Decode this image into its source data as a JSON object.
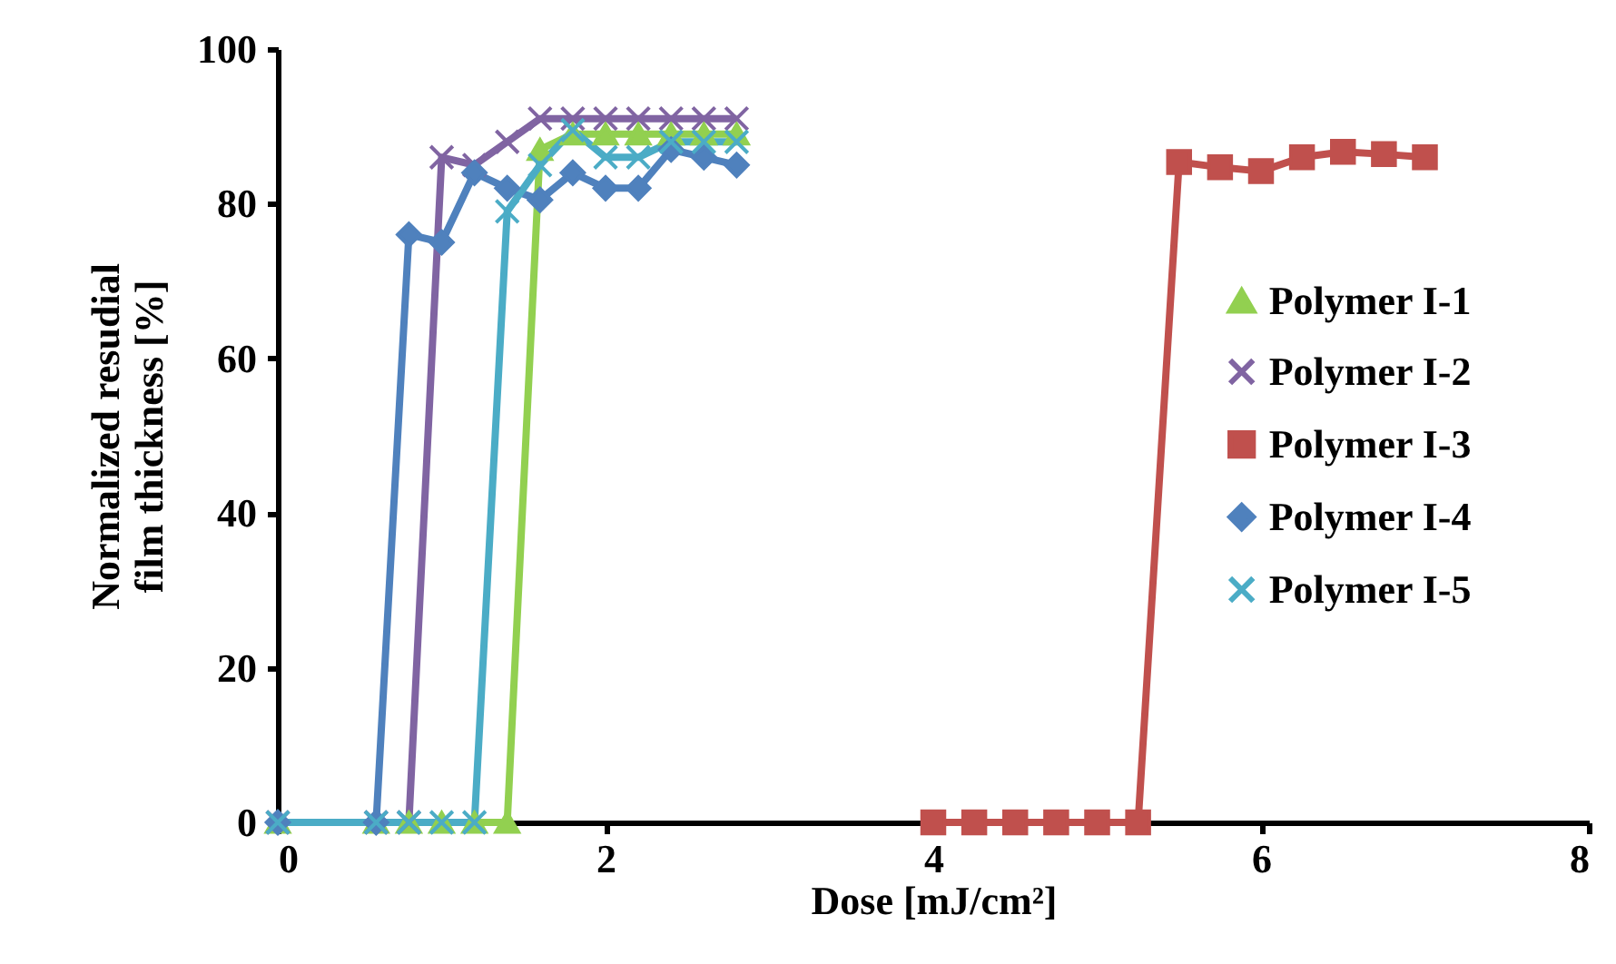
{
  "chart_data": {
    "type": "line",
    "xlabel": "Dose [mJ/cm²]",
    "ylabel": "Normalized resudial film thickness [%]",
    "x": [
      0,
      0.6,
      0.8,
      1.0,
      1.2,
      1.4,
      1.6,
      1.8,
      2.0,
      2.2,
      2.4,
      2.6,
      2.8
    ],
    "series": [
      {
        "name": "Polymer I-1",
        "color": "#92d050",
        "marker": "triangle",
        "values": [
          0,
          0,
          0,
          0,
          0,
          0,
          87,
          89,
          89,
          89,
          89,
          89,
          89
        ]
      },
      {
        "name": "Polymer I-2",
        "color": "#8064a2",
        "marker": "cross",
        "values": [
          0,
          0,
          0,
          86,
          85,
          88,
          91,
          91,
          91,
          91,
          91,
          91,
          91
        ]
      },
      {
        "name": "Polymer I-3",
        "color": "#c0504d",
        "marker": "square",
        "x": [
          4,
          4.25,
          4.5,
          4.75,
          5,
          5.25,
          5.5,
          5.75,
          6,
          6.25,
          6.5,
          6.75,
          7
        ],
        "values": [
          0,
          0,
          0,
          0,
          0,
          0,
          85.4,
          84.7,
          84.2,
          86,
          86.7,
          86.4,
          86
        ]
      },
      {
        "name": "Polymer I-4",
        "color": "#4f81bd",
        "marker": "diamond",
        "values": [
          0,
          0,
          76,
          75,
          84,
          82,
          80.5,
          84,
          82,
          82,
          87,
          86,
          85
        ]
      },
      {
        "name": "Polymer I-5",
        "color": "#4bacc6",
        "marker": "cross",
        "values": [
          0,
          0,
          0,
          0,
          0,
          79,
          85,
          89.5,
          86,
          86,
          88,
          88,
          88
        ]
      }
    ],
    "xlim": [
      0,
      8
    ],
    "xticks": [
      0,
      2,
      4,
      6,
      8
    ],
    "ylim": [
      0,
      100
    ],
    "yticks": [
      0,
      20,
      40,
      60,
      80,
      100
    ],
    "grid": false,
    "legend": "right",
    "line_style": "solid"
  }
}
